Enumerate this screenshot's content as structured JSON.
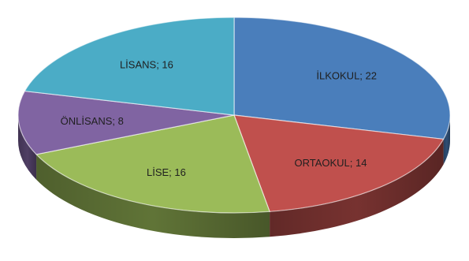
{
  "chart_data": {
    "type": "pie",
    "title": "",
    "style": "3d",
    "legend": "none",
    "categories": [
      "İLKOKUL",
      "ORTAOKUL",
      "LİSE",
      "ÖNLİSANS",
      "LİSANS"
    ],
    "values": [
      22,
      14,
      16,
      8,
      16
    ],
    "labels": [
      "İLKOKUL; 22",
      "ORTAOKUL; 14",
      "LİSE; 16",
      "ÖNLİSANS; 8",
      "LİSANS; 16"
    ],
    "colors": [
      "#4a7ebb",
      "#c0504d",
      "#9bbb59",
      "#8064a2",
      "#4bacc6"
    ]
  }
}
